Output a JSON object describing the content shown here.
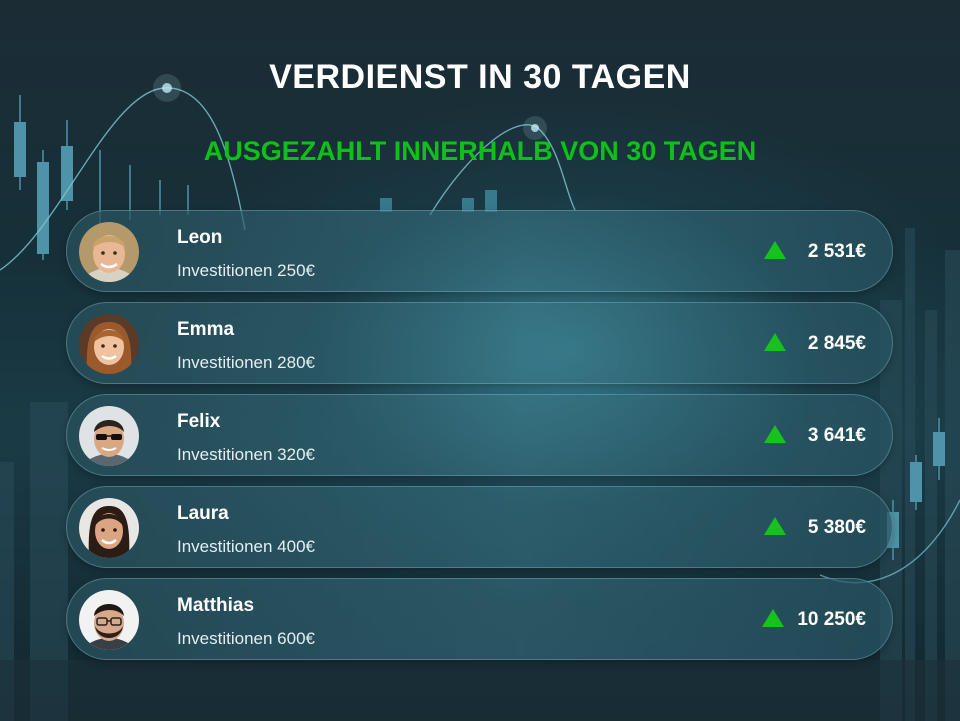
{
  "header": {
    "title": "VERDIENST IN 30 TAGEN",
    "subtitle": "AUSGEZAHLT INNERHALB VON 30 TAGEN"
  },
  "colors": {
    "accent_green": "#0fc01a",
    "arrow_green": "#17c21f",
    "text_white": "#ffffff"
  },
  "earners": [
    {
      "name": "Leon",
      "investment": "Investitionen 250€",
      "amount": "2 531€",
      "avatar_icon": "avatar-photo",
      "trend_icon": "up-arrow-icon"
    },
    {
      "name": "Emma",
      "investment": "Investitionen 280€",
      "amount": "2 845€",
      "avatar_icon": "avatar-photo",
      "trend_icon": "up-arrow-icon"
    },
    {
      "name": "Felix",
      "investment": "Investitionen 320€",
      "amount": "3 641€",
      "avatar_icon": "avatar-photo",
      "trend_icon": "up-arrow-icon"
    },
    {
      "name": "Laura",
      "investment": "Investitionen 400€",
      "amount": "5 380€",
      "avatar_icon": "avatar-photo",
      "trend_icon": "up-arrow-icon"
    },
    {
      "name": "Matthias",
      "investment": "Investitionen 600€",
      "amount": "10 250€",
      "avatar_icon": "avatar-photo",
      "trend_icon": "up-arrow-icon"
    }
  ]
}
